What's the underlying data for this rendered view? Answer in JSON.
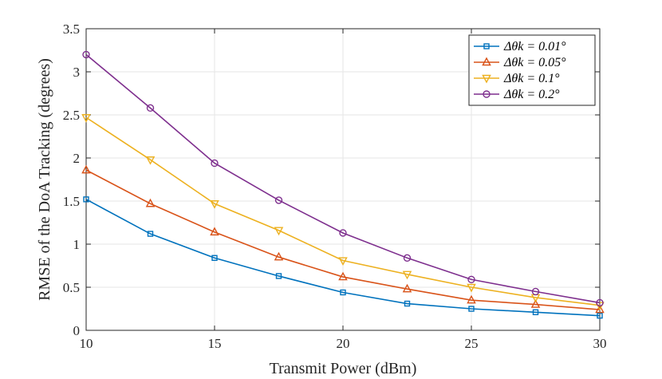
{
  "chart_data": {
    "type": "line",
    "title": "",
    "xlabel": "Transmit Power (dBm)",
    "ylabel": "RMSE of the DoA Tracking (degrees)",
    "xlim": [
      10,
      30
    ],
    "ylim": [
      0,
      3.5
    ],
    "xticks": [
      10,
      15,
      20,
      25,
      30
    ],
    "yticks": [
      0,
      0.5,
      1,
      1.5,
      2,
      2.5,
      3,
      3.5
    ],
    "xtick_labels": [
      "10",
      "15",
      "20",
      "25",
      "30"
    ],
    "ytick_labels": [
      "0",
      "0.5",
      "1",
      "1.5",
      "2",
      "2.5",
      "3",
      "3.5"
    ],
    "grid": true,
    "legend_position": "top-right",
    "x": [
      10,
      12.5,
      15,
      17.5,
      20,
      22.5,
      25,
      27.5,
      30
    ],
    "series": [
      {
        "name": "Δθ_k = 0.01°",
        "label": "Δθk = 0.01°",
        "color": "#0072BD",
        "marker": "square",
        "values": [
          1.52,
          1.12,
          0.84,
          0.63,
          0.44,
          0.31,
          0.25,
          0.21,
          0.17
        ]
      },
      {
        "name": "Δθ_k = 0.05°",
        "label": "Δθk = 0.05°",
        "color": "#D95319",
        "marker": "triangle-up",
        "values": [
          1.86,
          1.47,
          1.14,
          0.85,
          0.62,
          0.48,
          0.35,
          0.3,
          0.24
        ]
      },
      {
        "name": "Δθ_k = 0.1°",
        "label": "Δθk = 0.1°",
        "color": "#EDB120",
        "marker": "triangle-down",
        "values": [
          2.47,
          1.98,
          1.47,
          1.16,
          0.81,
          0.65,
          0.5,
          0.38,
          0.29
        ]
      },
      {
        "name": "Δθ_k = 0.2°",
        "label": "Δθk = 0.2°",
        "color": "#7E2F8E",
        "marker": "circle",
        "values": [
          3.2,
          2.58,
          1.94,
          1.51,
          1.13,
          0.84,
          0.59,
          0.45,
          0.32
        ]
      }
    ]
  }
}
